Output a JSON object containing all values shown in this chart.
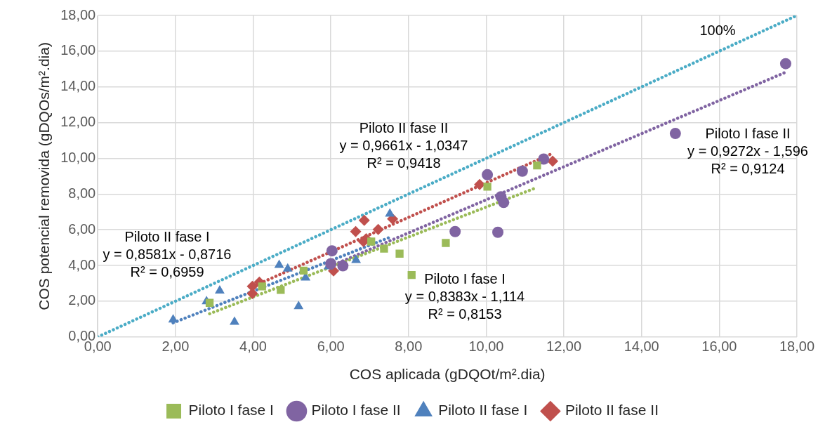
{
  "chart_data": {
    "type": "scatter",
    "xlabel": "COS aplicada (gDQOt/m².dia)",
    "ylabel": "COS potencial removida (gDQOs/m².dia)",
    "xlim": [
      0,
      18
    ],
    "ylim": [
      0,
      18
    ],
    "xticks": [
      {
        "value": 0,
        "label": "0,00"
      },
      {
        "value": 2,
        "label": "2,00"
      },
      {
        "value": 4,
        "label": "4,00"
      },
      {
        "value": 6,
        "label": "6,00"
      },
      {
        "value": 8,
        "label": "8,00"
      },
      {
        "value": 10,
        "label": "10,00"
      },
      {
        "value": 12,
        "label": "12,00"
      },
      {
        "value": 14,
        "label": "14,00"
      },
      {
        "value": 16,
        "label": "16,00"
      },
      {
        "value": 18,
        "label": "18,00"
      }
    ],
    "yticks": [
      {
        "value": 0,
        "label": "0,00"
      },
      {
        "value": 2,
        "label": "2,00"
      },
      {
        "value": 4,
        "label": "4,00"
      },
      {
        "value": 6,
        "label": "6,00"
      },
      {
        "value": 8,
        "label": "8,00"
      },
      {
        "value": 10,
        "label": "10,00"
      },
      {
        "value": 12,
        "label": "12,00"
      },
      {
        "value": 14,
        "label": "14,00"
      },
      {
        "value": 16,
        "label": "16,00"
      },
      {
        "value": 18,
        "label": "18,00"
      }
    ],
    "grid": true,
    "legend": "bottom",
    "series": [
      {
        "name": "Piloto I fase I",
        "color": "#9bbb59",
        "marker": "square",
        "x": [
          2.88,
          4.23,
          4.71,
          5.3,
          7.04,
          7.37,
          7.77,
          8.08,
          8.96,
          10.03,
          11.31
        ],
        "values": [
          1.91,
          2.83,
          2.63,
          3.71,
          5.34,
          4.94,
          4.66,
          3.47,
          5.26,
          8.41,
          9.6
        ]
      },
      {
        "name": "Piloto I fase II",
        "color": "#8064a2",
        "marker": "circle",
        "x": [
          6.03,
          6.0,
          6.31,
          9.2,
          10.3,
          10.03,
          10.93,
          11.48,
          10.38,
          10.45,
          14.87,
          17.71
        ],
        "values": [
          4.82,
          4.1,
          3.98,
          5.9,
          5.86,
          9.08,
          9.28,
          9.96,
          7.85,
          7.53,
          11.39,
          15.3
        ]
      },
      {
        "name": "Piloto II fase I",
        "color": "#4f81bd",
        "marker": "triangle",
        "x": [
          1.94,
          2.8,
          3.14,
          3.52,
          4.67,
          4.89,
          5.35,
          5.17,
          5.94,
          6.65,
          7.52
        ],
        "values": [
          0.97,
          1.99,
          2.59,
          0.84,
          4.02,
          3.82,
          3.31,
          1.71,
          3.94,
          4.3,
          6.89
        ]
      },
      {
        "name": "Piloto II fase II",
        "color": "#c0504d",
        "marker": "diamond",
        "x": [
          3.98,
          4.16,
          3.98,
          6.07,
          6.64,
          6.86,
          6.84,
          6.91,
          7.22,
          7.59,
          9.83,
          11.71
        ],
        "values": [
          2.83,
          3.07,
          2.43,
          3.7,
          5.9,
          6.53,
          5.34,
          5.5,
          6.02,
          6.61,
          8.53,
          9.84
        ]
      },
      {
        "type": "line",
        "color": "#9bbb59",
        "line_style": "dotted",
        "marker": "none",
        "x": [
          2.88,
          11.31
        ],
        "values": [
          1.3,
          8.37
        ]
      },
      {
        "type": "line",
        "color": "#8064a2",
        "line_style": "dotted",
        "marker": "none",
        "x": [
          6.0,
          17.71
        ],
        "values": [
          3.97,
          14.82
        ]
      },
      {
        "type": "line",
        "color": "#4f81bd",
        "line_style": "dotted",
        "marker": "none",
        "x": [
          1.94,
          7.52
        ],
        "values": [
          0.79,
          5.58
        ]
      },
      {
        "type": "line",
        "color": "#c0504d",
        "line_style": "dotted",
        "marker": "none",
        "x": [
          3.98,
          11.71
        ],
        "values": [
          2.81,
          10.28
        ]
      },
      {
        "type": "line",
        "color": "#4bacc6",
        "line_style": "dotted",
        "marker": "none",
        "x": [
          0,
          18
        ],
        "values": [
          0,
          18
        ]
      }
    ],
    "annotations": [
      "100%",
      "Piloto II fase II\ny = 0,9661x - 1,0347\nR² = 0,9418",
      "Piloto I fase II\ny = 0,9272x - 1,596\nR² = 0,9124",
      "Piloto II fase I\ny = 0,8581x - 0,8716\nR² = 0,6959",
      "Piloto I fase I\ny = 0,8383x - 1,114\nR² = 0,8153"
    ]
  }
}
